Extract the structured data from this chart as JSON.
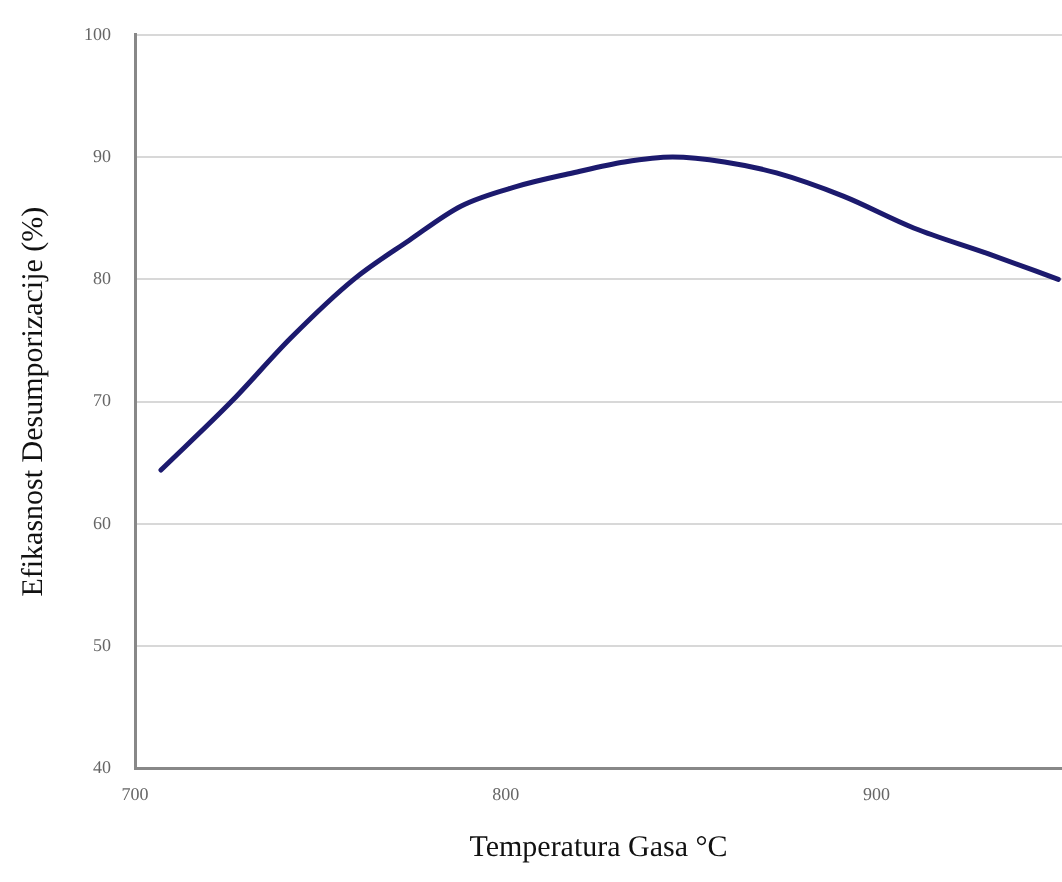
{
  "chart_data": {
    "type": "line",
    "xlabel": "Temperatura Gasa °C",
    "ylabel": "Efikasnost Desumporizacije (%)",
    "x": [
      707,
      726,
      742,
      759,
      774,
      788,
      803,
      818,
      832,
      845,
      859,
      873,
      891,
      910,
      930,
      949
    ],
    "series": [
      {
        "color": "#1c1a6e",
        "values": [
          64.4,
          70,
          75.2,
          80,
          83.2,
          86,
          87.6,
          88.7,
          89.6,
          90,
          89.6,
          88.7,
          86.8,
          84.2,
          82.1,
          80
        ]
      }
    ],
    "xlim": [
      700,
      950
    ],
    "xticks": [
      700,
      800,
      900
    ],
    "ylim": [
      40,
      100
    ],
    "yticks": [
      40,
      50,
      60,
      70,
      80,
      90,
      100
    ],
    "grid": "y",
    "marker": "none",
    "line_style": "solid"
  }
}
